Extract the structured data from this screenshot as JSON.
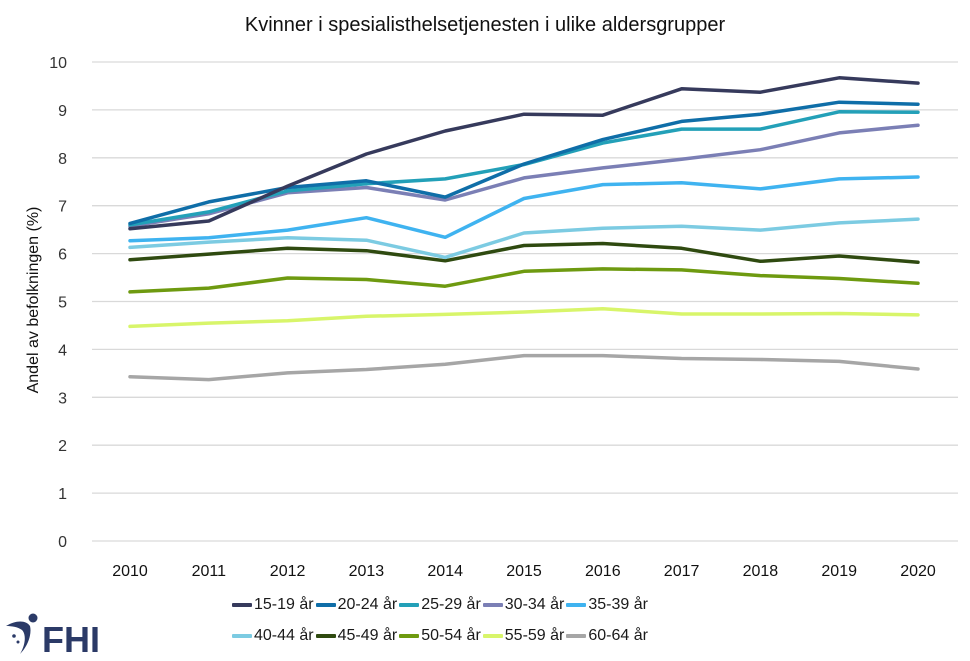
{
  "chart_data": {
    "type": "line",
    "title": "Kvinner i spesialisthelsetjenesten i ulike aldersgrupper",
    "xlabel": "",
    "ylabel": "Andel av befolkningen (%)",
    "ylim": [
      0,
      10
    ],
    "yticks": [
      "0",
      "1",
      "2",
      "3",
      "4",
      "5",
      "6",
      "7",
      "8",
      "9",
      "10"
    ],
    "grid": true,
    "legend_position": "bottom",
    "x": [
      "2010",
      "2011",
      "2012",
      "2013",
      "2014",
      "2015",
      "2016",
      "2017",
      "2018",
      "2019",
      "2020"
    ],
    "series": [
      {
        "name": "15-19 år",
        "color": "#363a5c",
        "values": [
          6.52,
          6.68,
          7.41,
          8.08,
          8.56,
          8.91,
          8.89,
          9.44,
          9.37,
          9.67,
          9.56
        ]
      },
      {
        "name": "20-24 år",
        "color": "#0f6ea8",
        "values": [
          6.63,
          7.08,
          7.38,
          7.52,
          7.18,
          7.87,
          8.38,
          8.76,
          8.91,
          9.16,
          9.12
        ]
      },
      {
        "name": "25-29 år",
        "color": "#23a0b8",
        "values": [
          6.6,
          6.87,
          7.31,
          7.46,
          7.56,
          7.86,
          8.31,
          8.6,
          8.6,
          8.96,
          8.95
        ]
      },
      {
        "name": "30-34 år",
        "color": "#7b7fb5",
        "values": [
          6.57,
          6.83,
          7.27,
          7.38,
          7.12,
          7.58,
          7.79,
          7.97,
          8.17,
          8.52,
          8.68
        ]
      },
      {
        "name": "35-39 år",
        "color": "#3fb3f0",
        "values": [
          6.27,
          6.33,
          6.49,
          6.75,
          6.34,
          7.15,
          7.44,
          7.48,
          7.35,
          7.56,
          7.6
        ]
      },
      {
        "name": "40-44 år",
        "color": "#7ccbe2",
        "values": [
          6.13,
          6.24,
          6.33,
          6.28,
          5.92,
          6.43,
          6.53,
          6.57,
          6.49,
          6.64,
          6.72
        ]
      },
      {
        "name": "45-49 år",
        "color": "#2f4a10",
        "values": [
          5.87,
          5.99,
          6.11,
          6.06,
          5.85,
          6.17,
          6.21,
          6.11,
          5.84,
          5.95,
          5.82
        ]
      },
      {
        "name": "50-54 år",
        "color": "#6e9a10",
        "values": [
          5.2,
          5.28,
          5.49,
          5.46,
          5.32,
          5.63,
          5.68,
          5.66,
          5.54,
          5.48,
          5.38
        ]
      },
      {
        "name": "55-59 år",
        "color": "#d8f56a",
        "values": [
          4.48,
          4.55,
          4.6,
          4.69,
          4.73,
          4.78,
          4.85,
          4.74,
          4.74,
          4.75,
          4.72
        ]
      },
      {
        "name": "60-64 år",
        "color": "#a6a6a6",
        "values": [
          3.43,
          3.37,
          3.51,
          3.58,
          3.69,
          3.87,
          3.87,
          3.81,
          3.79,
          3.75,
          3.59
        ]
      }
    ]
  },
  "logo": {
    "text": "FHI",
    "color": "#2b3a67"
  }
}
